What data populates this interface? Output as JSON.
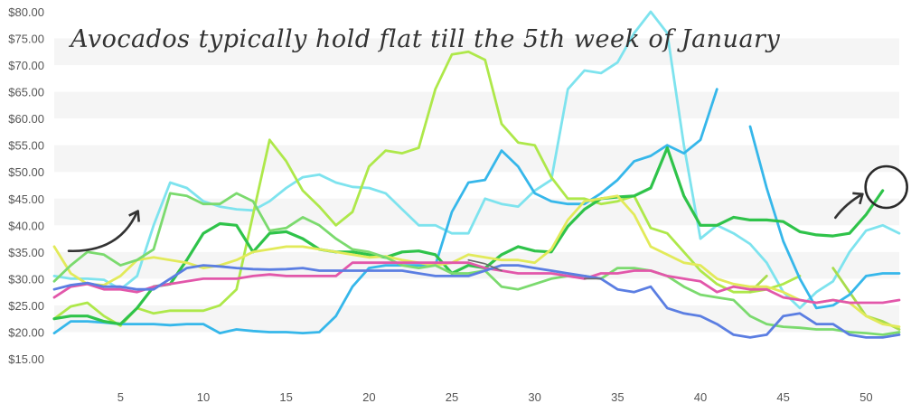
{
  "chart_data": {
    "type": "line",
    "title": "",
    "xlabel": "",
    "ylabel": "",
    "xlim": [
      1,
      52
    ],
    "ylim": [
      15,
      80
    ],
    "yticks": [
      "$15.00",
      "$20.00",
      "$25.00",
      "$30.00",
      "$35.00",
      "$40.00",
      "$45.00",
      "$50.00",
      "$55.00",
      "$60.00",
      "$65.00",
      "$70.00",
      "$75.00",
      "$80.00"
    ],
    "ytick_values": [
      15,
      20,
      25,
      30,
      35,
      40,
      45,
      50,
      55,
      60,
      65,
      70,
      75,
      80
    ],
    "xticks": [
      "5",
      "10",
      "15",
      "20",
      "25",
      "30",
      "35",
      "40",
      "45",
      "50"
    ],
    "xtick_values": [
      5,
      10,
      15,
      20,
      25,
      30,
      35,
      40,
      45,
      50
    ],
    "grid": "horizontal bands",
    "annotation": {
      "text": "Avocados typically hold flat till the 5th week of January",
      "x": 6,
      "y": 75.5
    },
    "markers": {
      "arrow_left_target": {
        "x": 6,
        "y": 42.5
      },
      "arrow_right_target": {
        "x": 50,
        "y": 45.5
      },
      "circle_center": {
        "x": 51,
        "y": 47.5
      }
    },
    "series": [
      {
        "color": "#7ee3ee",
        "width": 2.8,
        "values": [
          30.5,
          30,
          30,
          29.8,
          28,
          30.5,
          40,
          48,
          47,
          44.5,
          43.5,
          43,
          42.8,
          44.5,
          47,
          49,
          49.5,
          48,
          47.2,
          47,
          46,
          43,
          40,
          40,
          38.5,
          38.5,
          45,
          44,
          43.5,
          46.5,
          48.5,
          65.5,
          69,
          68.5,
          70.5,
          76,
          80,
          76,
          55,
          37.5,
          40,
          38.5,
          36.5,
          33,
          27.5,
          24.5,
          27.5,
          29.5,
          35,
          39,
          40,
          38.5
        ]
      },
      {
        "color": "#aee84a",
        "width": 2.8,
        "values": [
          22.5,
          24.8,
          25.5,
          23,
          21.2,
          24.5,
          23.5,
          24,
          24,
          24,
          25,
          28,
          42,
          56,
          52,
          46.5,
          43.5,
          40,
          42.5,
          51,
          54,
          53.5,
          54.5,
          65.5,
          72,
          72.5,
          71,
          59,
          55.5,
          55,
          49,
          45,
          45,
          44,
          44.5,
          45.5,
          39.5,
          38.5,
          35,
          31.5,
          29,
          27.5,
          27.5,
          28,
          29,
          30.5,
          null,
          null,
          null,
          null,
          null,
          null
        ]
      },
      {
        "color": "#a8dc4e",
        "width": 2.8,
        "values": [
          null,
          null,
          null,
          null,
          null,
          null,
          null,
          null,
          null,
          null,
          null,
          null,
          null,
          null,
          null,
          null,
          null,
          null,
          null,
          null,
          null,
          null,
          null,
          null,
          null,
          null,
          null,
          null,
          null,
          null,
          null,
          null,
          null,
          null,
          null,
          null,
          null,
          null,
          null,
          null,
          null,
          null,
          27.5,
          30.5,
          null,
          null,
          null,
          32,
          27.5,
          23,
          22,
          20.5
        ]
      },
      {
        "color": "#36b7ea",
        "width": 2.8,
        "values": [
          19.8,
          22,
          22,
          21.8,
          21.5,
          21.5,
          21.5,
          21.3,
          21.5,
          21.5,
          19.8,
          20.5,
          20.2,
          20,
          20,
          19.8,
          20,
          23,
          28.5,
          32,
          32.5,
          32.5,
          32.5,
          32.5,
          42.5,
          48,
          48.5,
          54,
          51,
          46,
          44.5,
          44,
          44,
          46,
          48.5,
          52,
          53,
          55,
          53.5,
          56,
          65.5,
          null,
          58.5,
          47,
          37,
          30,
          24.5,
          25,
          27,
          30.5,
          31,
          31
        ]
      },
      {
        "color": "#2fc34a",
        "width": 3.2,
        "values": [
          22.5,
          23,
          23,
          22,
          21.5,
          24.5,
          28.5,
          29,
          33.5,
          38.5,
          40.3,
          40,
          35,
          38.5,
          38.8,
          37.5,
          35.5,
          35,
          35,
          34.5,
          34,
          35,
          35.2,
          34.5,
          31,
          32.5,
          32,
          34.5,
          36,
          35.2,
          35,
          39.8,
          43,
          45,
          45.3,
          45.5,
          47,
          54.5,
          45.5,
          40,
          40,
          41.5,
          41,
          41,
          40.7,
          38.8,
          38.2,
          38,
          38.5,
          42,
          46.5,
          null
        ]
      },
      {
        "color": "#e2ea5a",
        "width": 2.8,
        "values": [
          36,
          31,
          29,
          28.8,
          30.5,
          33.5,
          34,
          33.5,
          33,
          32,
          32.5,
          33.5,
          35,
          35.5,
          36,
          36,
          35.5,
          35,
          34.5,
          34,
          34.2,
          33.5,
          33,
          32.5,
          33,
          34.5,
          34,
          33.5,
          33.5,
          33,
          35.5,
          41,
          44.5,
          45,
          45.5,
          42,
          36,
          34.5,
          33,
          32.5,
          30,
          29,
          28.5,
          28.5,
          27.5,
          26,
          25.5,
          26,
          25.5,
          23,
          21.5,
          21
        ]
      },
      {
        "color": "#7bda6e",
        "width": 2.8,
        "values": [
          29.5,
          32.5,
          35,
          34.5,
          32.5,
          33.5,
          35.5,
          46,
          45.5,
          44,
          44,
          46,
          44.5,
          39,
          39.5,
          41.5,
          40,
          37.5,
          35.5,
          35,
          34,
          32.5,
          32,
          32.5,
          31,
          31,
          31.5,
          28.5,
          28,
          29,
          30,
          30.5,
          30.5,
          30,
          32,
          32,
          31.5,
          30.5,
          28.5,
          27,
          26.5,
          26,
          23,
          21.5,
          21,
          20.8,
          20.5,
          20.5,
          20,
          19.8,
          19.5,
          20
        ]
      },
      {
        "color": "#e257aa",
        "width": 2.8,
        "values": [
          26.5,
          28.5,
          29,
          28,
          28,
          27.5,
          28.5,
          29,
          29.5,
          30,
          30,
          30,
          30.5,
          30.8,
          30.5,
          30.5,
          30.5,
          30.5,
          33,
          33,
          33,
          33,
          33,
          33,
          33,
          33,
          32,
          31.5,
          31,
          31,
          31,
          30.5,
          30,
          31,
          31,
          31.5,
          31.5,
          30.5,
          30,
          29.5,
          27.5,
          28.5,
          28,
          28,
          26.5,
          26,
          25.5,
          26,
          25.5,
          25.5,
          25.5,
          26
        ]
      },
      {
        "color": "#5b7ee2",
        "width": 2.8,
        "values": [
          28,
          28.8,
          29.2,
          28.5,
          28.5,
          28,
          28,
          30,
          32,
          32.5,
          32.3,
          32,
          31.8,
          31.7,
          31.8,
          32,
          31.5,
          31.5,
          31.5,
          31.5,
          31.5,
          31.5,
          31,
          30.5,
          30.5,
          30.5,
          31.5,
          32.5,
          32.5,
          32,
          31.5,
          31,
          30.5,
          30,
          28,
          27.5,
          28.5,
          24.5,
          23.5,
          23,
          21.5,
          19.5,
          19,
          19.5,
          23,
          23.5,
          21.5,
          21.5,
          19.5,
          19,
          19,
          19.5
        ]
      },
      {
        "color": "#6b6b6b",
        "width": 1.6,
        "values": [
          null,
          null,
          null,
          null,
          null,
          null,
          null,
          null,
          null,
          null,
          null,
          null,
          null,
          null,
          null,
          null,
          null,
          null,
          null,
          null,
          null,
          null,
          null,
          null,
          null,
          33.5,
          32.8,
          31.5,
          null,
          null,
          null,
          null,
          30,
          30,
          null,
          null,
          null,
          null,
          null,
          null,
          null,
          null,
          null,
          null,
          null,
          null,
          null,
          null,
          null,
          null,
          null,
          null
        ]
      }
    ]
  }
}
